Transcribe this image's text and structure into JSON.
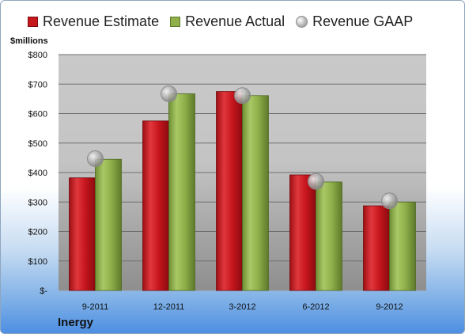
{
  "legend": {
    "estimate_label": "Revenue Estimate",
    "actual_label": "Revenue Actual",
    "gaap_label": "Revenue GAAP"
  },
  "y_unit_label": "$millions",
  "company": "Inergy",
  "chart_data": {
    "type": "bar",
    "categories": [
      "9-2011",
      "12-2011",
      "3-2012",
      "6-2012",
      "9-2012"
    ],
    "series": [
      {
        "name": "Revenue Estimate",
        "type": "bar",
        "color": "#c8161d",
        "values": [
          382,
          575,
          675,
          392,
          287
        ]
      },
      {
        "name": "Revenue Actual",
        "type": "bar",
        "color": "#8fb04a",
        "values": [
          445,
          667,
          661,
          368,
          300
        ]
      },
      {
        "name": "Revenue GAAP",
        "type": "marker",
        "color": "#a8a8a8",
        "values": [
          447,
          667,
          661,
          370,
          304
        ]
      }
    ],
    "ylabel": "$millions",
    "ylim": [
      0,
      800
    ],
    "yticks": [
      0,
      100,
      200,
      300,
      400,
      500,
      600,
      700,
      800
    ],
    "ytick_labels": [
      "$-",
      "$100",
      "$200",
      "$300",
      "$400",
      "$500",
      "$600",
      "$700",
      "$800"
    ],
    "grid": true,
    "legend_position": "top"
  }
}
